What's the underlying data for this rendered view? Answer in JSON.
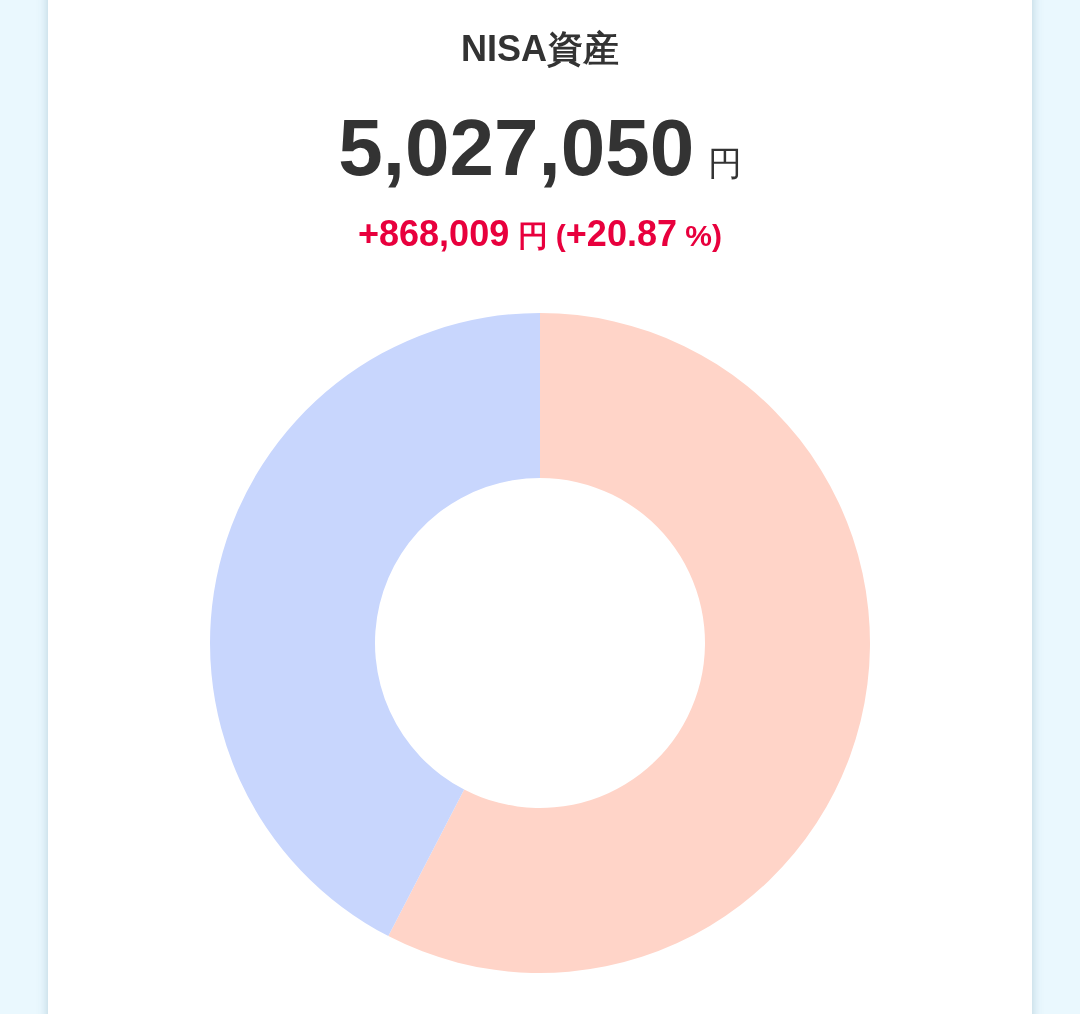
{
  "chart_data": {
    "type": "donut",
    "title": "NISA資産",
    "subtitle": "5,027,050 円",
    "annotations": [
      "+868,009 円 (+20.87 %)"
    ],
    "categories": [
      null,
      null
    ],
    "values": [
      57.6,
      42.4
    ],
    "colors": [
      "#ffd4c8",
      "#c8d6fd"
    ]
  }
}
